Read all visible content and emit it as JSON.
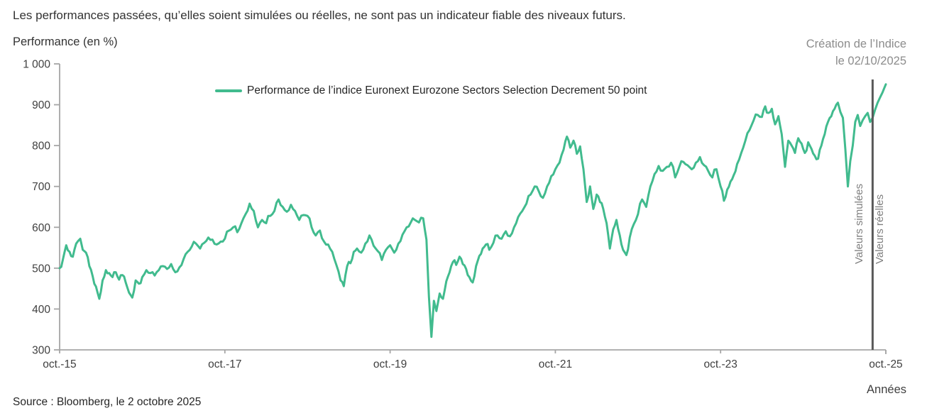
{
  "header": {
    "disclaimer": "Les performances passées, qu’elles soient simulées ou réelles, ne sont pas un indicateur fiable des niveaux futurs."
  },
  "footer": {
    "source": "Source : Bloomberg, le 2 octobre 2025"
  },
  "chart": {
    "y_axis_title": "Performance (en %)",
    "x_axis_title": "Années",
    "legend": "Performance de l’indice Euronext Eurozone Sectors Selection Decrement 50 point",
    "annotation": {
      "title_line1": "Création de l’Indice",
      "title_line2": "le 02/10/2025",
      "left_label": "Valeurs simulées",
      "right_label": "Valeurs réelles"
    },
    "colors": {
      "series": "#41bb8e",
      "axis": "#a6a6a6",
      "annotation_line": "#595959",
      "muted_text": "#8c8c8c",
      "text": "#404040"
    }
  },
  "chart_data": {
    "type": "line",
    "title": "Performance de l’indice Euronext Eurozone Sectors Selection Decrement 50 point",
    "xlabel": "Années",
    "ylabel": "Performance (en %)",
    "x_unit": "années depuis oct. 2015",
    "xlim": [
      0,
      10
    ],
    "ylim": [
      300,
      1000
    ],
    "grid": false,
    "legend_position": "top-center",
    "x_tick_positions": [
      0,
      2,
      4,
      6,
      8,
      10
    ],
    "x_tick_labels": [
      "oct.-15",
      "oct.-17",
      "oct.-19",
      "oct.-21",
      "oct.-23",
      "oct.-25"
    ],
    "y_ticks": [
      300,
      400,
      500,
      600,
      700,
      800,
      900,
      1000
    ],
    "y_tick_labels": [
      "300",
      "400",
      "500",
      "600",
      "700",
      "800",
      "900",
      "1 000"
    ],
    "annotation_line_x": 9.84,
    "annotation_line_label": "Création de l’Indice le 02/10/2025",
    "series": [
      {
        "name": "Performance de l’indice Euronext Eurozone Sectors Selection Decrement 50 point",
        "color": "#41bb8e",
        "points": [
          [
            0.0,
            500
          ],
          [
            0.04,
            522
          ],
          [
            0.08,
            556
          ],
          [
            0.12,
            540
          ],
          [
            0.16,
            528
          ],
          [
            0.2,
            560
          ],
          [
            0.25,
            572
          ],
          [
            0.28,
            545
          ],
          [
            0.32,
            538
          ],
          [
            0.36,
            505
          ],
          [
            0.4,
            480
          ],
          [
            0.44,
            455
          ],
          [
            0.48,
            425
          ],
          [
            0.52,
            470
          ],
          [
            0.56,
            495
          ],
          [
            0.6,
            488
          ],
          [
            0.64,
            478
          ],
          [
            0.68,
            490
          ],
          [
            0.72,
            472
          ],
          [
            0.76,
            483
          ],
          [
            0.8,
            465
          ],
          [
            0.84,
            440
          ],
          [
            0.88,
            428
          ],
          [
            0.92,
            470
          ],
          [
            0.96,
            462
          ],
          [
            1.0,
            478
          ],
          [
            1.05,
            495
          ],
          [
            1.1,
            488
          ],
          [
            1.15,
            482
          ],
          [
            1.2,
            495
          ],
          [
            1.25,
            505
          ],
          [
            1.3,
            498
          ],
          [
            1.35,
            510
          ],
          [
            1.4,
            490
          ],
          [
            1.45,
            502
          ],
          [
            1.5,
            522
          ],
          [
            1.55,
            540
          ],
          [
            1.6,
            553
          ],
          [
            1.65,
            560
          ],
          [
            1.7,
            548
          ],
          [
            1.75,
            562
          ],
          [
            1.8,
            575
          ],
          [
            1.85,
            570
          ],
          [
            1.9,
            558
          ],
          [
            1.95,
            565
          ],
          [
            2.0,
            572
          ],
          [
            2.05,
            592
          ],
          [
            2.1,
            600
          ],
          [
            2.15,
            588
          ],
          [
            2.2,
            610
          ],
          [
            2.25,
            632
          ],
          [
            2.3,
            658
          ],
          [
            2.35,
            640
          ],
          [
            2.4,
            600
          ],
          [
            2.45,
            618
          ],
          [
            2.5,
            610
          ],
          [
            2.55,
            628
          ],
          [
            2.6,
            640
          ],
          [
            2.65,
            668
          ],
          [
            2.7,
            650
          ],
          [
            2.75,
            638
          ],
          [
            2.8,
            655
          ],
          [
            2.85,
            640
          ],
          [
            2.9,
            618
          ],
          [
            2.95,
            630
          ],
          [
            3.0,
            628
          ],
          [
            3.05,
            600
          ],
          [
            3.1,
            580
          ],
          [
            3.15,
            592
          ],
          [
            3.2,
            565
          ],
          [
            3.25,
            558
          ],
          [
            3.3,
            540
          ],
          [
            3.35,
            508
          ],
          [
            3.4,
            470
          ],
          [
            3.44,
            456
          ],
          [
            3.48,
            505
          ],
          [
            3.52,
            512
          ],
          [
            3.56,
            540
          ],
          [
            3.6,
            548
          ],
          [
            3.65,
            538
          ],
          [
            3.7,
            560
          ],
          [
            3.75,
            580
          ],
          [
            3.8,
            555
          ],
          [
            3.85,
            542
          ],
          [
            3.9,
            520
          ],
          [
            3.95,
            545
          ],
          [
            4.0,
            556
          ],
          [
            4.05,
            538
          ],
          [
            4.1,
            560
          ],
          [
            4.15,
            582
          ],
          [
            4.2,
            600
          ],
          [
            4.25,
            612
          ],
          [
            4.3,
            618
          ],
          [
            4.35,
            612
          ],
          [
            4.4,
            622
          ],
          [
            4.44,
            570
          ],
          [
            4.47,
            430
          ],
          [
            4.5,
            332
          ],
          [
            4.53,
            420
          ],
          [
            4.56,
            395
          ],
          [
            4.6,
            438
          ],
          [
            4.64,
            425
          ],
          [
            4.68,
            468
          ],
          [
            4.72,
            490
          ],
          [
            4.76,
            515
          ],
          [
            4.8,
            508
          ],
          [
            4.84,
            528
          ],
          [
            4.88,
            510
          ],
          [
            4.92,
            498
          ],
          [
            4.96,
            478
          ],
          [
            5.0,
            465
          ],
          [
            5.04,
            505
          ],
          [
            5.08,
            530
          ],
          [
            5.12,
            548
          ],
          [
            5.16,
            558
          ],
          [
            5.2,
            545
          ],
          [
            5.25,
            562
          ],
          [
            5.3,
            580
          ],
          [
            5.35,
            572
          ],
          [
            5.4,
            590
          ],
          [
            5.45,
            578
          ],
          [
            5.5,
            600
          ],
          [
            5.55,
            625
          ],
          [
            5.6,
            640
          ],
          [
            5.65,
            658
          ],
          [
            5.7,
            680
          ],
          [
            5.75,
            700
          ],
          [
            5.8,
            688
          ],
          [
            5.85,
            672
          ],
          [
            5.9,
            700
          ],
          [
            5.95,
            725
          ],
          [
            6.0,
            742
          ],
          [
            6.05,
            758
          ],
          [
            6.1,
            790
          ],
          [
            6.14,
            822
          ],
          [
            6.18,
            795
          ],
          [
            6.22,
            812
          ],
          [
            6.26,
            780
          ],
          [
            6.3,
            798
          ],
          [
            6.34,
            742
          ],
          [
            6.38,
            662
          ],
          [
            6.42,
            700
          ],
          [
            6.46,
            645
          ],
          [
            6.5,
            680
          ],
          [
            6.54,
            662
          ],
          [
            6.58,
            645
          ],
          [
            6.62,
            610
          ],
          [
            6.66,
            548
          ],
          [
            6.7,
            595
          ],
          [
            6.74,
            618
          ],
          [
            6.78,
            580
          ],
          [
            6.82,
            545
          ],
          [
            6.86,
            532
          ],
          [
            6.9,
            575
          ],
          [
            6.95,
            608
          ],
          [
            7.0,
            632
          ],
          [
            7.05,
            668
          ],
          [
            7.1,
            650
          ],
          [
            7.15,
            700
          ],
          [
            7.2,
            730
          ],
          [
            7.25,
            750
          ],
          [
            7.3,
            738
          ],
          [
            7.35,
            748
          ],
          [
            7.4,
            758
          ],
          [
            7.45,
            722
          ],
          [
            7.5,
            748
          ],
          [
            7.55,
            760
          ],
          [
            7.6,
            752
          ],
          [
            7.65,
            742
          ],
          [
            7.7,
            758
          ],
          [
            7.75,
            772
          ],
          [
            7.8,
            752
          ],
          [
            7.85,
            738
          ],
          [
            7.9,
            722
          ],
          [
            7.95,
            742
          ],
          [
            8.0,
            700
          ],
          [
            8.04,
            665
          ],
          [
            8.08,
            692
          ],
          [
            8.12,
            712
          ],
          [
            8.16,
            728
          ],
          [
            8.2,
            755
          ],
          [
            8.25,
            782
          ],
          [
            8.3,
            812
          ],
          [
            8.35,
            838
          ],
          [
            8.4,
            862
          ],
          [
            8.45,
            875
          ],
          [
            8.5,
            870
          ],
          [
            8.54,
            896
          ],
          [
            8.58,
            880
          ],
          [
            8.62,
            890
          ],
          [
            8.66,
            852
          ],
          [
            8.7,
            872
          ],
          [
            8.74,
            828
          ],
          [
            8.78,
            748
          ],
          [
            8.82,
            812
          ],
          [
            8.86,
            800
          ],
          [
            8.9,
            782
          ],
          [
            8.94,
            818
          ],
          [
            8.98,
            805
          ],
          [
            9.02,
            782
          ],
          [
            9.06,
            808
          ],
          [
            9.1,
            792
          ],
          [
            9.14,
            775
          ],
          [
            9.18,
            768
          ],
          [
            9.22,
            800
          ],
          [
            9.26,
            828
          ],
          [
            9.3,
            858
          ],
          [
            9.34,
            872
          ],
          [
            9.38,
            890
          ],
          [
            9.42,
            905
          ],
          [
            9.45,
            882
          ],
          [
            9.48,
            868
          ],
          [
            9.51,
            790
          ],
          [
            9.54,
            700
          ],
          [
            9.57,
            762
          ],
          [
            9.6,
            800
          ],
          [
            9.63,
            858
          ],
          [
            9.66,
            875
          ],
          [
            9.69,
            848
          ],
          [
            9.72,
            862
          ],
          [
            9.75,
            872
          ],
          [
            9.78,
            880
          ],
          [
            9.81,
            858
          ],
          [
            9.84,
            868
          ],
          [
            9.87,
            888
          ],
          [
            9.9,
            905
          ],
          [
            9.93,
            918
          ],
          [
            9.96,
            930
          ],
          [
            10.0,
            950
          ]
        ]
      }
    ]
  }
}
